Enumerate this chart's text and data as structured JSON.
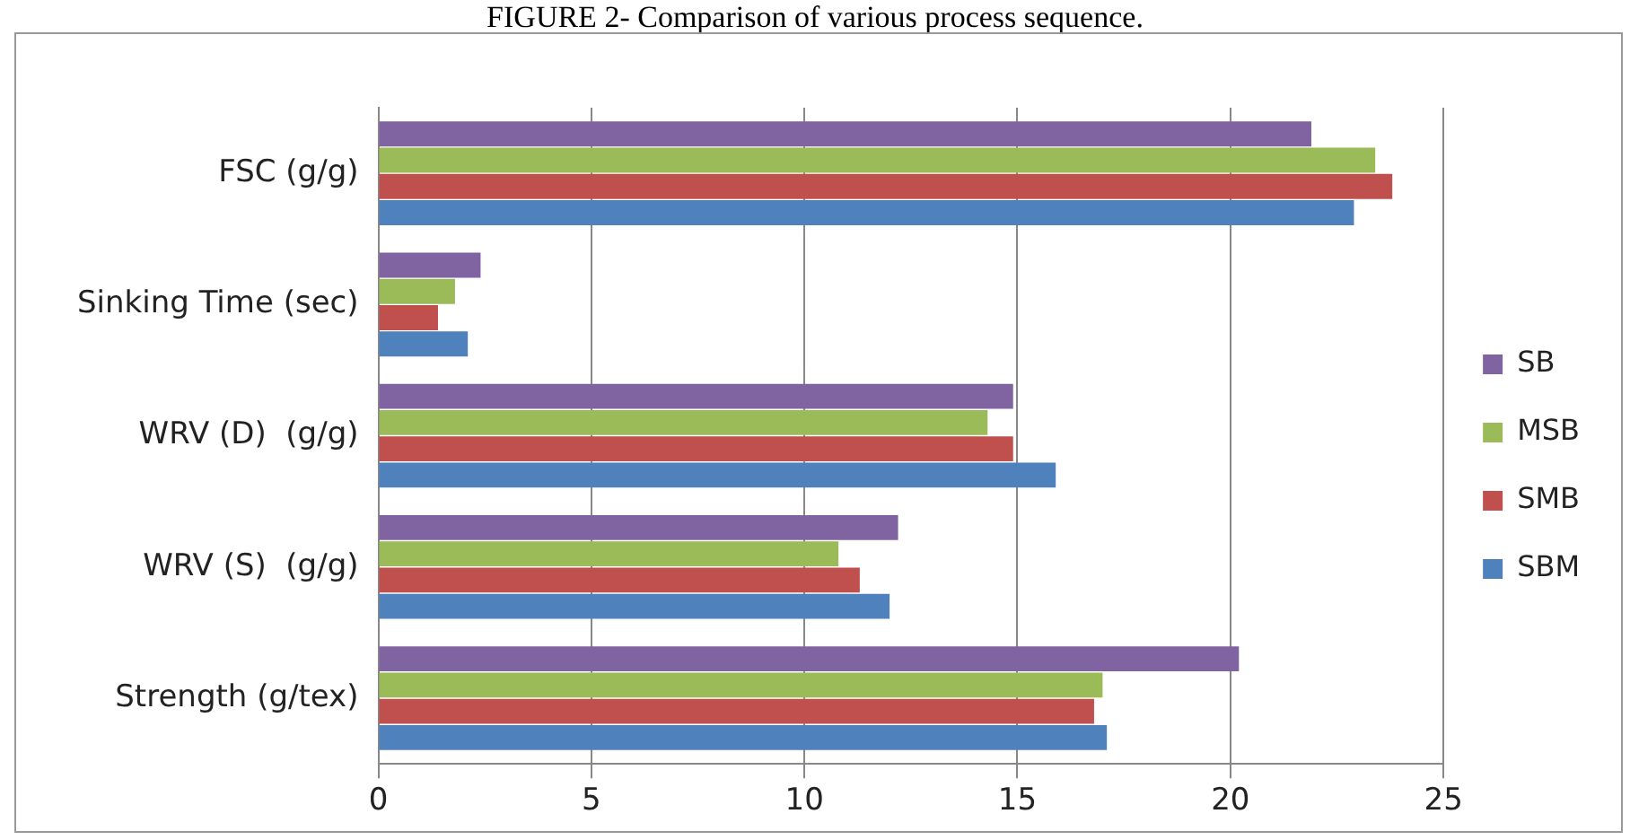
{
  "chart_data": {
    "type": "bar",
    "orientation": "horizontal",
    "title": "FIGURE 2- Comparison of various process sequence.",
    "categories": [
      "FSC (g/g)",
      "Sinking Time (sec)",
      "WRV (D)  (g/g)",
      "WRV (S)  (g/g)",
      "Strength (g/tex)"
    ],
    "series": [
      {
        "name": "SB",
        "color": "#8064a2",
        "values": [
          21.9,
          2.4,
          14.9,
          12.2,
          20.2
        ]
      },
      {
        "name": "MSB",
        "color": "#9bbb59",
        "values": [
          23.4,
          1.8,
          14.3,
          10.8,
          17.0
        ]
      },
      {
        "name": "SMB",
        "color": "#c0504d",
        "values": [
          23.8,
          1.4,
          14.9,
          11.3,
          16.8
        ]
      },
      {
        "name": "SBM",
        "color": "#4f81bd",
        "values": [
          22.9,
          2.1,
          15.9,
          12.0,
          17.1
        ]
      }
    ],
    "xlim": [
      0,
      25
    ],
    "xticks": [
      0,
      5,
      10,
      15,
      20,
      25
    ],
    "grid": "x",
    "legend": "right"
  }
}
